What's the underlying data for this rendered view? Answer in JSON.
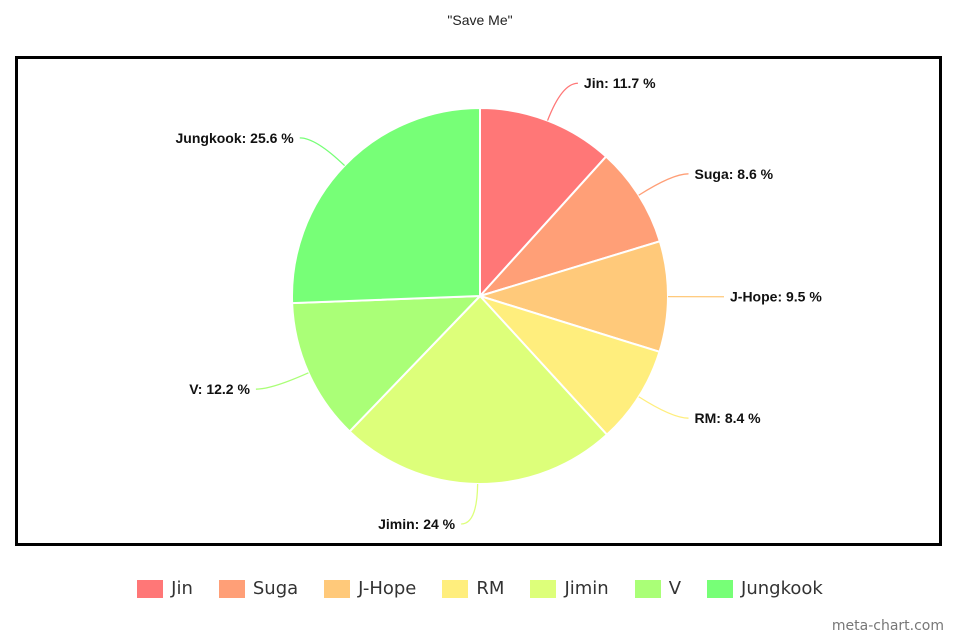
{
  "chart_data": {
    "type": "pie",
    "title": "\"Save Me\"",
    "slices": [
      {
        "name": "Jin",
        "value": 11.7,
        "label": "Jin: 11.7 %",
        "color": "#ff7777"
      },
      {
        "name": "Suga",
        "value": 8.6,
        "label": "Suga: 8.6 %",
        "color": "#ff9f77"
      },
      {
        "name": "J-Hope",
        "value": 9.5,
        "label": "J-Hope: 9.5 %",
        "color": "#ffc97a"
      },
      {
        "name": "RM",
        "value": 8.4,
        "label": "RM: 8.4 %",
        "color": "#ffee7d"
      },
      {
        "name": "Jimin",
        "value": 24,
        "label": "Jimin: 24 %",
        "color": "#ddff7a"
      },
      {
        "name": "V",
        "value": 12.2,
        "label": "V: 12.2 %",
        "color": "#aaff77"
      },
      {
        "name": "Jungkook",
        "value": 25.6,
        "label": "Jungkook: 25.6 %",
        "color": "#77ff77"
      }
    ],
    "legend_position": "bottom"
  },
  "watermark": "meta-chart.com"
}
